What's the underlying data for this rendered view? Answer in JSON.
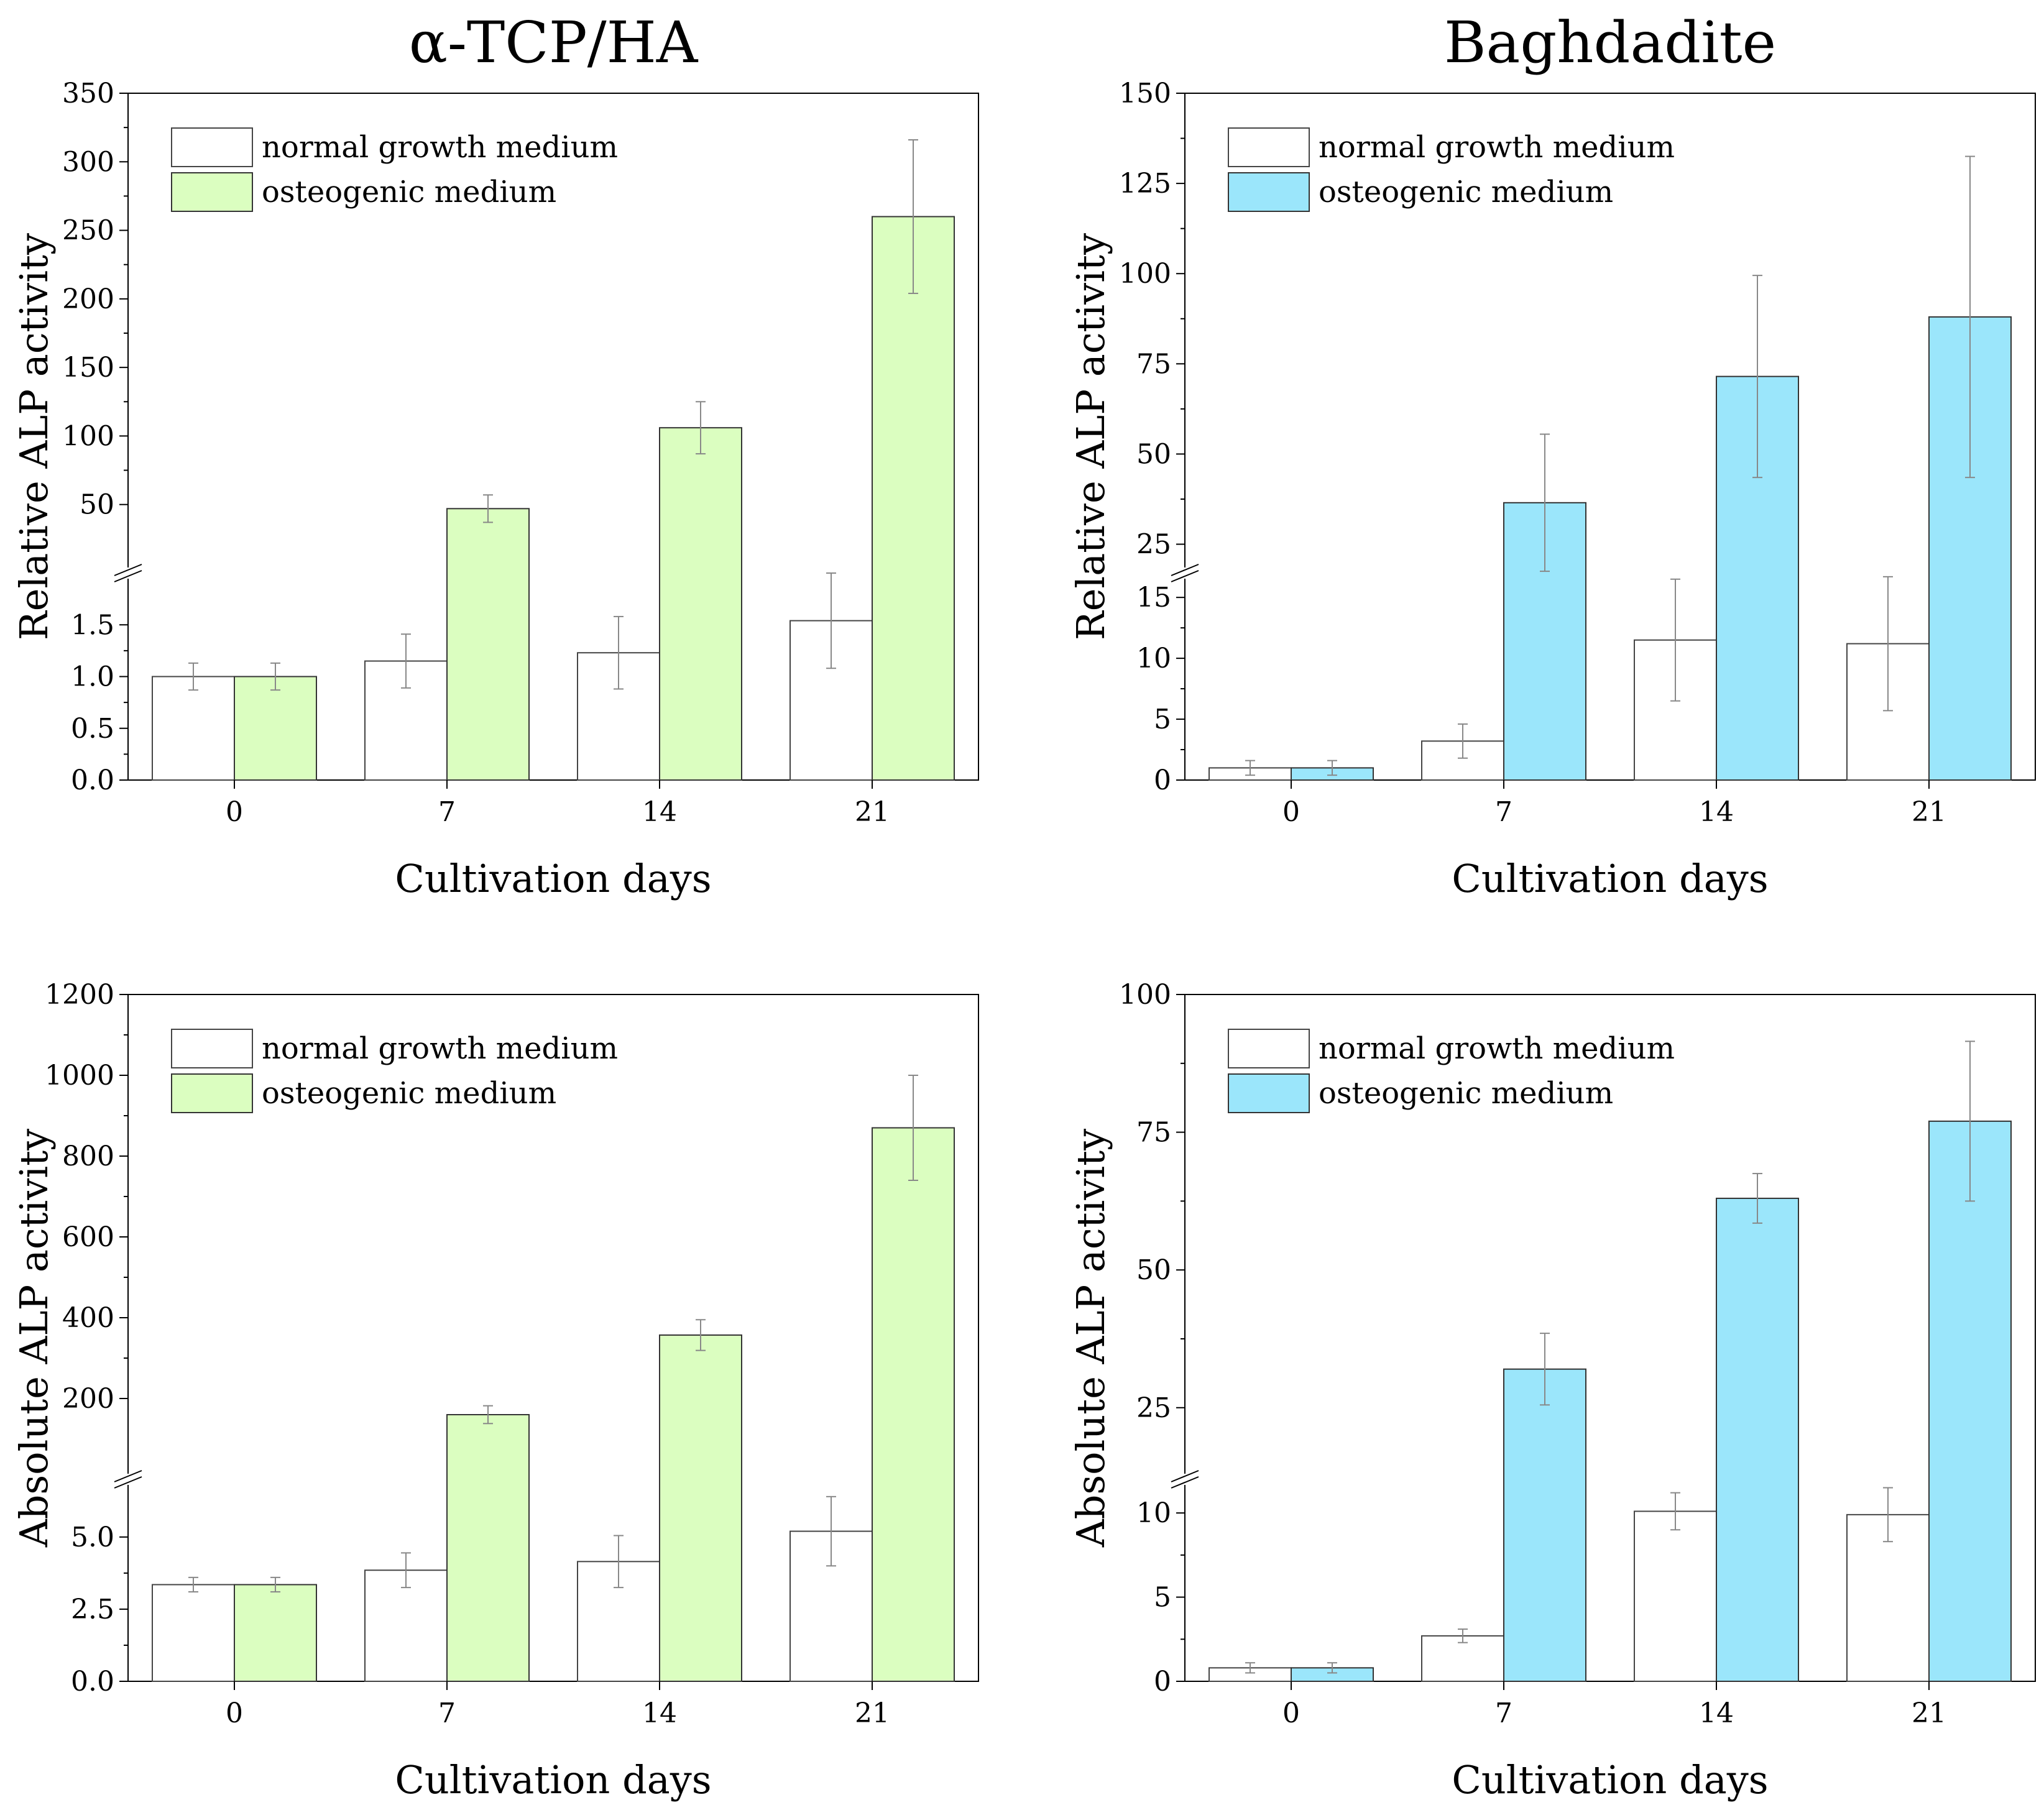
{
  "colors": {
    "normal_fill": "#ffffff",
    "normal_stroke": "#444444",
    "green_fill": "#dbfec0",
    "blue_fill": "#9be6fb",
    "bar_stroke": "#333333",
    "error_stroke": "#888888"
  },
  "chart_data": [
    {
      "type": "bar",
      "title": "α-TCP/HA",
      "xlabel": "Cultivation days",
      "ylabel": "Relative ALP activity",
      "categories": [
        "0",
        "7",
        "14",
        "21"
      ],
      "accent": "green",
      "legend": {
        "placement": "top-left",
        "entries": [
          "normal growth medium",
          "osteogenic medium"
        ]
      },
      "axis_break": {
        "lower_range": [
          0,
          2
        ],
        "upper_range": [
          0,
          350
        ],
        "lower_ticks": [
          0.0,
          0.5,
          1.0,
          1.5
        ],
        "lower_tick_labels": [
          "0.0",
          "0.5",
          "1.0",
          "1.5"
        ],
        "upper_ticks": [
          50,
          100,
          150,
          200,
          250,
          300,
          350
        ],
        "upper_tick_labels": [
          "50",
          "100",
          "150",
          "200",
          "250",
          "300",
          "350"
        ]
      },
      "series": [
        {
          "name": "normal growth medium",
          "values": [
            1.0,
            1.15,
            1.23,
            1.54
          ],
          "errors": [
            0.13,
            0.26,
            0.35,
            0.46
          ]
        },
        {
          "name": "osteogenic medium",
          "values": [
            1.0,
            47,
            106,
            260
          ],
          "errors": [
            0.13,
            10,
            19,
            56
          ]
        }
      ]
    },
    {
      "type": "bar",
      "title": "Baghdadite",
      "xlabel": "Cultivation days",
      "ylabel": "Relative ALP activity",
      "categories": [
        "0",
        "7",
        "14",
        "21"
      ],
      "accent": "blue",
      "legend": {
        "placement": "top-left",
        "entries": [
          "normal growth medium",
          "osteogenic medium"
        ]
      },
      "axis_break": {
        "lower_range": [
          0,
          17
        ],
        "upper_range": [
          17,
          150
        ],
        "lower_ticks": [
          0,
          5,
          10,
          15
        ],
        "lower_tick_labels": [
          "0",
          "5",
          "10",
          "15"
        ],
        "upper_ticks": [
          25,
          50,
          75,
          100,
          125,
          150
        ],
        "upper_tick_labels": [
          "25",
          "50",
          "75",
          "100",
          "125",
          "150"
        ]
      },
      "series": [
        {
          "name": "normal growth medium",
          "values": [
            1.0,
            3.2,
            11.5,
            11.2
          ],
          "errors": [
            0.6,
            1.4,
            5.0,
            5.5
          ]
        },
        {
          "name": "osteogenic medium",
          "values": [
            1.0,
            36.5,
            71.5,
            88
          ],
          "errors": [
            0.6,
            19,
            28,
            44.5
          ]
        }
      ]
    },
    {
      "type": "bar",
      "title": "",
      "xlabel": "Cultivation days",
      "ylabel": "Absolute ALP activity",
      "categories": [
        "0",
        "7",
        "14",
        "21"
      ],
      "accent": "green",
      "legend": {
        "placement": "top-left",
        "entries": [
          "normal growth medium",
          "osteogenic medium"
        ]
      },
      "axis_break": {
        "lower_range": [
          0,
          7
        ],
        "upper_range": [
          0,
          1200
        ],
        "lower_ticks": [
          0.0,
          2.5,
          5.0
        ],
        "lower_tick_labels": [
          "0.0",
          "2.5",
          "5.0"
        ],
        "upper_ticks": [
          200,
          400,
          600,
          800,
          1000,
          1200
        ],
        "upper_tick_labels": [
          "200",
          "400",
          "600",
          "800",
          "1000",
          "1200"
        ]
      },
      "series": [
        {
          "name": "normal growth medium",
          "values": [
            3.35,
            3.85,
            4.15,
            5.2
          ],
          "errors": [
            0.25,
            0.6,
            0.9,
            1.2
          ]
        },
        {
          "name": "osteogenic medium",
          "values": [
            3.35,
            160,
            357,
            870
          ],
          "errors": [
            0.25,
            22,
            38,
            130
          ]
        }
      ]
    },
    {
      "type": "bar",
      "title": "",
      "xlabel": "Cultivation days",
      "ylabel": "Absolute ALP activity",
      "categories": [
        "0",
        "7",
        "14",
        "21"
      ],
      "accent": "blue",
      "legend": {
        "placement": "top-left",
        "entries": [
          "normal growth medium",
          "osteogenic medium"
        ]
      },
      "axis_break": {
        "lower_range": [
          0,
          12
        ],
        "upper_range": [
          12,
          100
        ],
        "lower_ticks": [
          0,
          5,
          10
        ],
        "lower_tick_labels": [
          "0",
          "5",
          "10"
        ],
        "upper_ticks": [
          25,
          50,
          75,
          100
        ],
        "upper_tick_labels": [
          "25",
          "50",
          "75",
          "100"
        ]
      },
      "series": [
        {
          "name": "normal growth medium",
          "values": [
            0.8,
            2.7,
            10.1,
            9.9
          ],
          "errors": [
            0.3,
            0.4,
            1.1,
            1.6
          ]
        },
        {
          "name": "osteogenic medium",
          "values": [
            0.8,
            32,
            63,
            77
          ],
          "errors": [
            0.3,
            6.5,
            4.5,
            14.5
          ]
        }
      ]
    }
  ]
}
